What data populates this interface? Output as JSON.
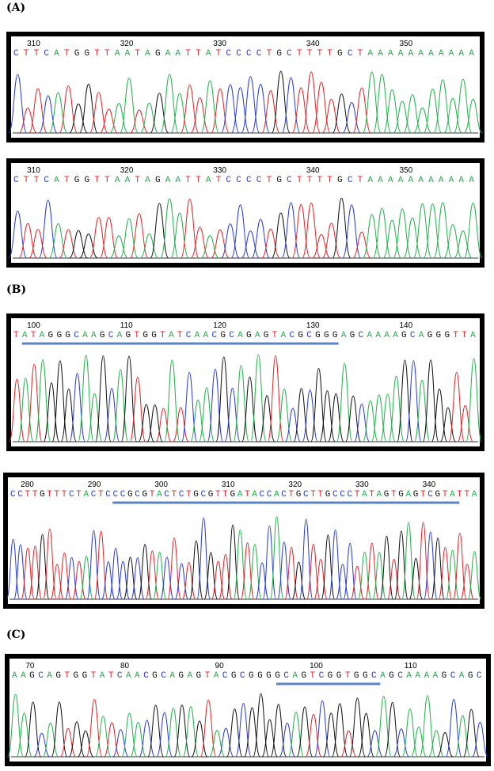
{
  "panels": [
    {
      "label": "(A)",
      "traces": [
        {
          "positions": [
            "310",
            "320",
            "330",
            "340",
            "350"
          ],
          "sequence": "CTTCATGGTTAATAGAATTATCCCCTGCTTTTGCTAAAAAAAAAAA"
        },
        {
          "positions": [
            "310",
            "320",
            "330",
            "340",
            "350"
          ],
          "sequence": "CTTCATGGTTAATAGAATTATCCCCTGCTTTTGCTAAAAAAAAAAA"
        }
      ]
    },
    {
      "label": "(B)",
      "traces": [
        {
          "positions": [
            "100",
            "110",
            "120",
            "130",
            "140"
          ],
          "sequence": "TATAGGGCAAGCAGTGGTATCAACGCAGAGTACGCGGGAGCAAAAGCAGGGTTA"
        },
        {
          "positions": [
            "280",
            "290",
            "300",
            "310",
            "320",
            "330",
            "340"
          ],
          "sequence": "CCTTGTTTCTACTCCCGCGTACTCTGCGTTGATACCACTGCTTGCCCTATAGTGAGTCGTATTA"
        }
      ]
    },
    {
      "label": "(C)",
      "traces": [
        {
          "positions": [
            "70",
            "80",
            "90",
            "100",
            "110"
          ],
          "sequence": "AAGCAGTGGTATCAACGCAGAGTACGCGGGGCAGTCGGTGGCAGCAAAAGCAGC"
        }
      ]
    }
  ],
  "base_colors": {
    "A": "#22b14c",
    "C": "#2a3bd6",
    "G": "#111111",
    "T": "#e0262b"
  }
}
